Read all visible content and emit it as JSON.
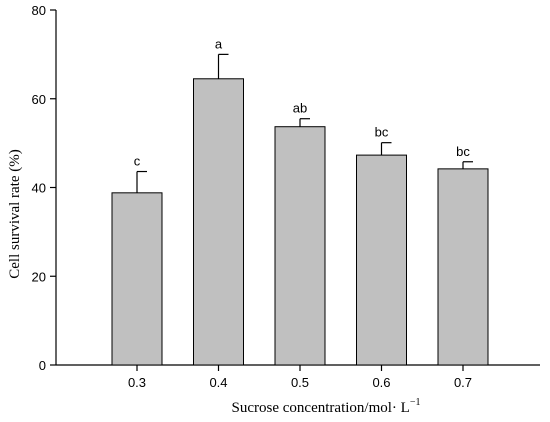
{
  "chart_data": {
    "type": "bar",
    "categories": [
      "0.3",
      "0.4",
      "0.5",
      "0.6",
      "0.7"
    ],
    "values": [
      38.8,
      64.5,
      53.7,
      47.3,
      44.2
    ],
    "errors": [
      4.8,
      5.5,
      1.8,
      2.8,
      1.6
    ],
    "significance_labels": [
      "c",
      "a",
      "ab",
      "bc",
      "bc"
    ],
    "xlabel": "Sucrose concentration/mol· L",
    "xlabel_superscript": "−1",
    "ylabel": "Cell survival rate (%)",
    "ylim": [
      0,
      80
    ],
    "yticks": [
      0,
      20,
      40,
      60,
      80
    ],
    "grid": false,
    "bar_color": "#c0c0c0",
    "bar_edge_color": "#000000"
  }
}
